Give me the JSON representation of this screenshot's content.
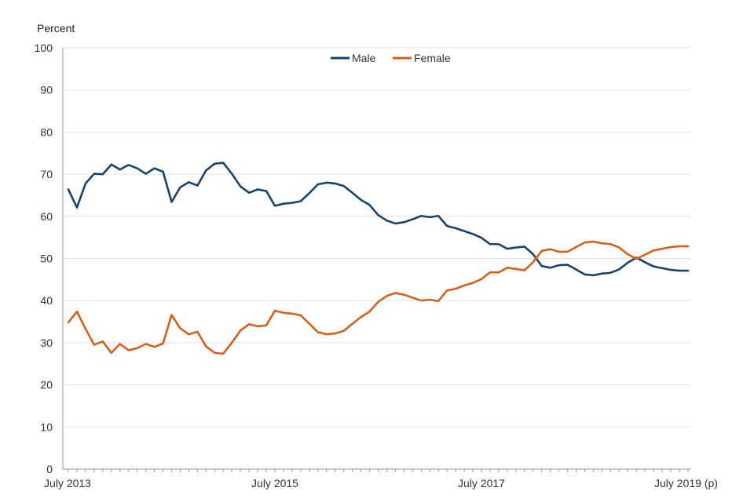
{
  "chart_data": {
    "type": "line",
    "ylabel": "Percent",
    "ylim": [
      0,
      100
    ],
    "yticks": [
      0,
      10,
      20,
      30,
      40,
      50,
      60,
      70,
      80,
      90,
      100
    ],
    "x_start": "July 2013",
    "x_end": "July 2019",
    "x_tick_labels": [
      {
        "label": "July 2013",
        "index": 0
      },
      {
        "label": "July 2015",
        "index": 24
      },
      {
        "label": "July 2017",
        "index": 48
      },
      {
        "label": "July 2019 (p)",
        "index": 72
      }
    ],
    "grid": true,
    "legend_position": "top-center",
    "series": [
      {
        "name": "Male",
        "color": "#17436b",
        "values": [
          66.4,
          62.1,
          67.8,
          70.1,
          70.0,
          72.3,
          71.1,
          72.2,
          71.4,
          70.1,
          71.4,
          70.6,
          63.4,
          66.9,
          68.1,
          67.3,
          70.9,
          72.5,
          72.7,
          70.1,
          67.1,
          65.6,
          66.4,
          66.0,
          62.5,
          63.0,
          63.2,
          63.6,
          65.5,
          67.6,
          68.0,
          67.8,
          67.2,
          65.6,
          63.9,
          62.7,
          60.3,
          59.0,
          58.3,
          58.6,
          59.3,
          60.1,
          59.8,
          60.1,
          57.7,
          57.2,
          56.5,
          55.8,
          54.9,
          53.4,
          53.4,
          52.3,
          52.6,
          52.8,
          51.0,
          48.2,
          47.8,
          48.4,
          48.5,
          47.4,
          46.2,
          46.0,
          46.4,
          46.6,
          47.4,
          49.0,
          50.2,
          49.1,
          48.1,
          47.7,
          47.3,
          47.1,
          47.1
        ],
        "end_value": 47.1
      },
      {
        "name": "Female",
        "color": "#d4601b",
        "values": [
          34.8,
          37.4,
          33.3,
          29.5,
          30.3,
          27.6,
          29.7,
          28.2,
          28.7,
          29.7,
          29.0,
          29.8,
          36.6,
          33.4,
          32.0,
          32.6,
          29.1,
          27.6,
          27.4,
          30.0,
          32.9,
          34.4,
          33.9,
          34.1,
          37.6,
          37.1,
          36.9,
          36.5,
          34.5,
          32.5,
          32.0,
          32.2,
          32.8,
          34.5,
          36.1,
          37.4,
          39.7,
          41.1,
          41.8,
          41.4,
          40.7,
          40.0,
          40.2,
          39.9,
          42.4,
          42.8,
          43.6,
          44.2,
          45.1,
          46.7,
          46.7,
          47.8,
          47.5,
          47.2,
          49.1,
          51.8,
          52.2,
          51.6,
          51.6,
          52.7,
          53.8,
          54.0,
          53.6,
          53.4,
          52.6,
          51.0,
          49.9,
          50.9,
          51.9,
          52.3,
          52.7,
          52.9,
          52.9
        ],
        "end_value": 52.9
      }
    ]
  }
}
